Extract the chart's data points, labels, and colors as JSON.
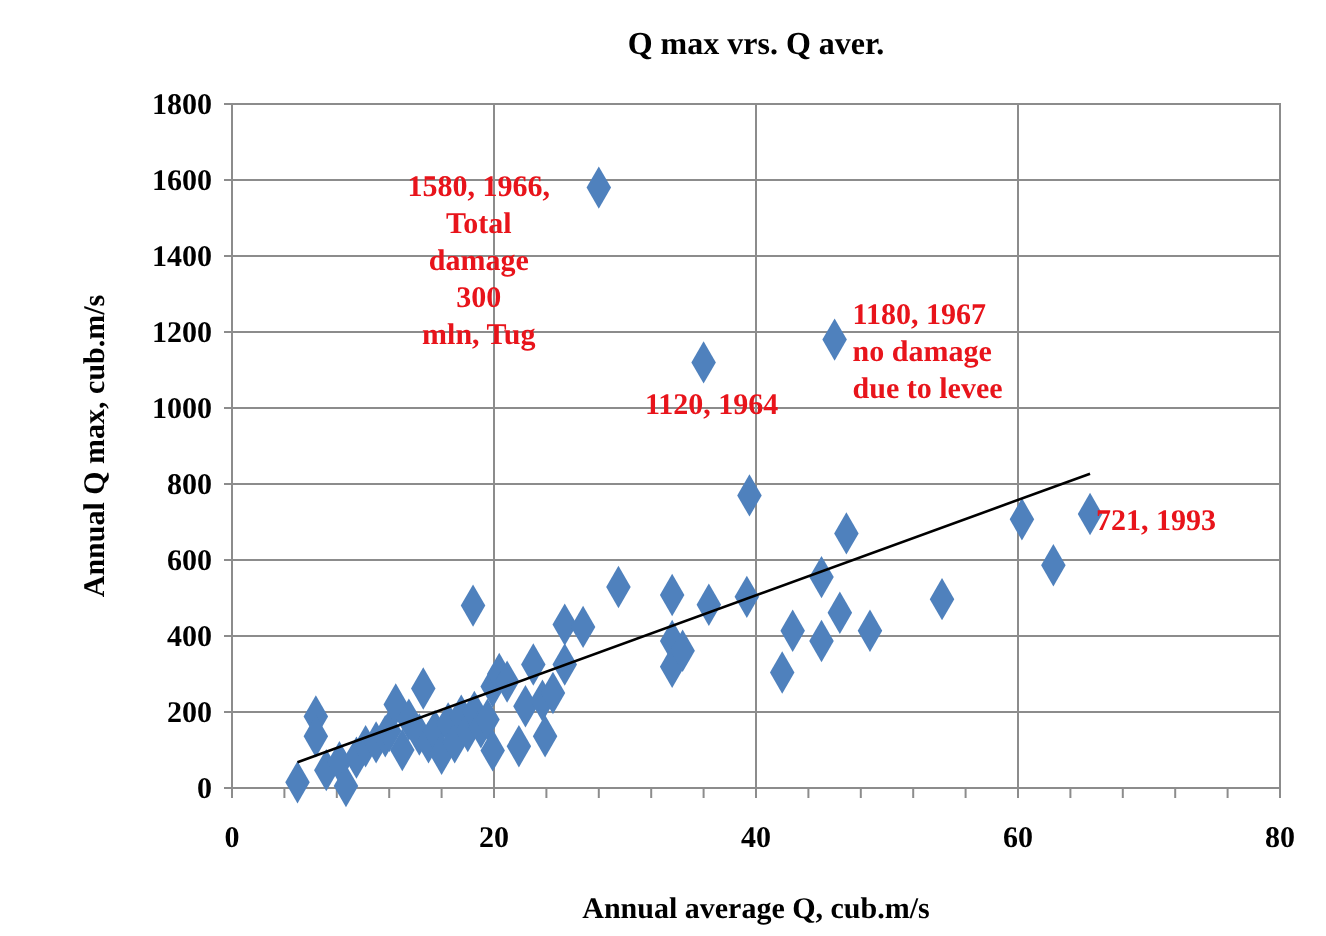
{
  "chart_data": {
    "type": "scatter",
    "title": "Q max vrs. Q aver.",
    "xlabel": "Annual average Q, cub.m/s",
    "ylabel": "Annual Q max, cub.m/s",
    "xlim": [
      0,
      80
    ],
    "ylim": [
      0,
      1800
    ],
    "xticks": [
      0,
      {
        "value": 4,
        "label": null
      },
      {
        "value": 8,
        "label": null
      },
      {
        "value": 12,
        "label": null
      },
      {
        "value": 16,
        "label": null
      },
      20,
      {
        "value": 24,
        "label": null
      },
      {
        "value": 28,
        "label": null
      },
      {
        "value": 32,
        "label": null
      },
      {
        "value": 36,
        "label": null
      },
      40,
      {
        "value": 44,
        "label": null
      },
      {
        "value": 48,
        "label": null
      },
      {
        "value": 52,
        "label": null
      },
      {
        "value": 56,
        "label": null
      },
      60,
      {
        "value": 64,
        "label": null
      },
      {
        "value": 68,
        "label": null
      },
      {
        "value": 72,
        "label": null
      },
      {
        "value": 76,
        "label": null
      },
      80
    ],
    "yticks": [
      0,
      200,
      400,
      600,
      800,
      1000,
      1200,
      1400,
      1600,
      1800
    ],
    "grid": true,
    "series": [
      {
        "marker": "diamond",
        "color": "#4f81bd",
        "x": [
          5,
          6.4,
          6.4,
          7.2,
          8.2,
          8.7,
          9.5,
          10.2,
          11,
          11.7,
          12,
          12.5,
          13,
          13.5,
          14.3,
          14.6,
          15,
          15.5,
          16,
          16.5,
          17,
          17.5,
          18,
          18.4,
          18.5,
          19,
          19.5,
          19.9,
          19.9,
          20.4,
          21,
          21.9,
          22.4,
          23,
          23.7,
          23.9,
          24.5,
          25.4,
          25.4,
          26.8,
          29.5,
          33.6,
          33.6,
          33.6,
          34.4,
          36,
          36.4,
          28,
          39.3,
          39.5,
          42,
          42.8,
          45,
          45,
          46,
          46.4,
          46.9,
          48.7,
          54.2,
          60.3,
          62.7,
          65.5
        ],
        "values": [
          15,
          188,
          136,
          47,
          68,
          5,
          80,
          110,
          120,
          136,
          150,
          220,
          100,
          180,
          141,
          262,
          120,
          150,
          90,
          170,
          120,
          190,
          150,
          480,
          200,
          160,
          180,
          99,
          267,
          300,
          280,
          110,
          215,
          325,
          230,
          136,
          250,
          325,
          430,
          424,
          529,
          508,
          387,
          319,
          361,
          1120,
          482,
          1580,
          503,
          770,
          304,
          414,
          387,
          555,
          1180,
          461,
          670,
          414,
          497,
          707,
          586,
          721
        ]
      },
      {
        "type": "line",
        "color": "#000000",
        "marker": "none",
        "x": [
          5,
          65.5
        ],
        "values": [
          68,
          827
        ]
      }
    ],
    "annotations": [
      {
        "text": "1580, 1966,\nTotal\ndamage\n300\nmln, Tug",
        "x": 28,
        "y": 1580
      },
      {
        "text": "1120, 1964",
        "x": 36,
        "y": 1120
      },
      {
        "text": "1180, 1967\nno damage\ndue to levee",
        "x": 46,
        "y": 1180
      },
      {
        "text": "721, 1993",
        "x": 65.5,
        "y": 721
      }
    ]
  }
}
